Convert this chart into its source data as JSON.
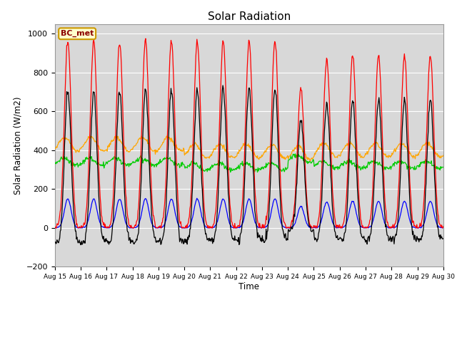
{
  "title": "Solar Radiation",
  "ylabel": "Solar Radiation (W/m2)",
  "xlabel": "Time",
  "xlim_days": [
    15,
    30
  ],
  "ylim": [
    -200,
    1050
  ],
  "yticks": [
    -200,
    0,
    200,
    400,
    600,
    800,
    1000
  ],
  "background_color": "#d8d8d8",
  "legend_label": "BC_met",
  "series_colors": {
    "SW_in": "#ff0000",
    "SW_out": "#0000ff",
    "LW_in": "#00cc00",
    "LW_out": "#ffa500",
    "Rnet": "#000000"
  },
  "n_days": 15,
  "start_day": 15,
  "figsize": [
    6.4,
    4.8
  ],
  "dpi": 100
}
